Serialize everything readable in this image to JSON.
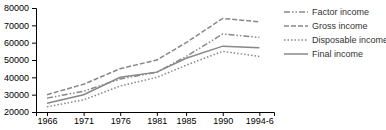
{
  "chart_data": {
    "type": "line",
    "x": [
      1966,
      1971,
      1976,
      1981,
      1985,
      1990,
      1995
    ],
    "xlim": [
      1964.5,
      1997
    ],
    "xticks": [
      1966,
      1971,
      1976,
      1981,
      1985,
      1990,
      {
        "value": 1995,
        "label": "1994-6"
      }
    ],
    "ylim": [
      20000,
      80000
    ],
    "yticks": [
      20000,
      30000,
      40000,
      50000,
      60000,
      70000,
      80000
    ],
    "grid": false,
    "legend": "right",
    "series": [
      {
        "name": "Factor income",
        "color": "#888888",
        "line_style": "dashdot",
        "values": [
          28000,
          32000,
          39000,
          43000,
          52000,
          65000,
          63000
        ]
      },
      {
        "name": "Gross income",
        "color": "#888888",
        "line_style": "dashed",
        "values": [
          30000,
          36000,
          45000,
          50000,
          60000,
          74000,
          72000
        ]
      },
      {
        "name": "Disposable income",
        "color": "#888888",
        "line_style": "dotted",
        "values": [
          23000,
          27000,
          35000,
          40000,
          47000,
          55000,
          52000
        ]
      },
      {
        "name": "Final income",
        "color": "#888888",
        "line_style": "solid",
        "values": [
          25000,
          30000,
          40000,
          43000,
          51000,
          58000,
          57000
        ]
      }
    ]
  }
}
